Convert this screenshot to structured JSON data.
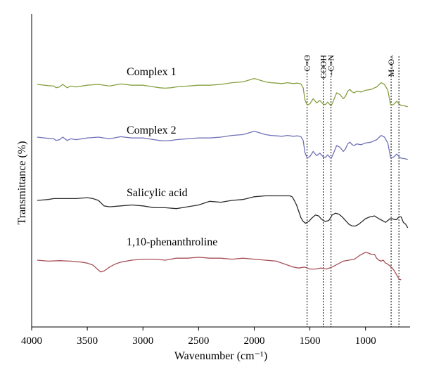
{
  "chart_data": {
    "type": "line",
    "xlabel": "Wavenumber (cm⁻¹)",
    "ylabel": "Transmittance (%)",
    "xlim": [
      4000,
      600
    ],
    "x_ticks": [
      "4000",
      "3500",
      "3000",
      "2500",
      "2000",
      "1500",
      "1000"
    ],
    "x_tick_values": [
      4000,
      3500,
      3000,
      2500,
      2000,
      1500,
      1000
    ],
    "y_axis_numeric": false,
    "grid": false,
    "legend": "none",
    "annotations": [
      {
        "label": "C=O",
        "x": 1525
      },
      {
        "label": "COOH",
        "x": 1380
      },
      {
        "label": "–C=N",
        "x": 1310
      },
      {
        "label": "M–O–",
        "x": 770
      },
      {
        "label": "",
        "x": 700
      }
    ],
    "series": [
      {
        "name": "Complex 1",
        "color": "#86a040",
        "x": [
          3950,
          3850,
          3800,
          3780,
          3750,
          3720,
          3680,
          3650,
          3600,
          3500,
          3400,
          3300,
          3200,
          3100,
          3000,
          2950,
          2900,
          2850,
          2800,
          2750,
          2700,
          2600,
          2500,
          2400,
          2300,
          2200,
          2100,
          2050,
          2000,
          1950,
          1900,
          1850,
          1800,
          1750,
          1700,
          1650,
          1610,
          1580,
          1560,
          1545,
          1525,
          1500,
          1470,
          1440,
          1410,
          1380,
          1360,
          1340,
          1310,
          1290,
          1260,
          1230,
          1200,
          1180,
          1160,
          1140,
          1120,
          1100,
          1080,
          1040,
          1000,
          950,
          900,
          860,
          830,
          800,
          775,
          760,
          740,
          720,
          700,
          680,
          650,
          620
        ],
        "y": [
          0.5,
          0.485,
          0.48,
          0.46,
          0.47,
          0.5,
          0.46,
          0.48,
          0.47,
          0.49,
          0.5,
          0.48,
          0.505,
          0.49,
          0.49,
          0.48,
          0.47,
          0.46,
          0.455,
          0.46,
          0.47,
          0.48,
          0.49,
          0.49,
          0.5,
          0.52,
          0.53,
          0.55,
          0.57,
          0.55,
          0.53,
          0.52,
          0.515,
          0.51,
          0.52,
          0.51,
          0.515,
          0.505,
          0.46,
          0.32,
          0.255,
          0.27,
          0.33,
          0.28,
          0.31,
          0.265,
          0.26,
          0.29,
          0.245,
          0.3,
          0.4,
          0.38,
          0.33,
          0.36,
          0.42,
          0.44,
          0.41,
          0.4,
          0.42,
          0.41,
          0.43,
          0.44,
          0.47,
          0.52,
          0.5,
          0.43,
          0.26,
          0.255,
          0.27,
          0.3,
          0.27,
          0.25,
          0.245,
          0.235
        ]
      },
      {
        "name": "Complex 2",
        "color": "#7072b8",
        "x": [
          3950,
          3850,
          3800,
          3780,
          3750,
          3720,
          3680,
          3650,
          3600,
          3500,
          3400,
          3300,
          3200,
          3100,
          3000,
          2950,
          2900,
          2850,
          2800,
          2750,
          2700,
          2600,
          2500,
          2400,
          2300,
          2200,
          2100,
          2050,
          2000,
          1950,
          1900,
          1850,
          1800,
          1750,
          1700,
          1650,
          1610,
          1580,
          1560,
          1545,
          1525,
          1500,
          1470,
          1440,
          1410,
          1380,
          1360,
          1340,
          1310,
          1290,
          1260,
          1230,
          1200,
          1180,
          1160,
          1140,
          1120,
          1100,
          1080,
          1040,
          1000,
          950,
          900,
          860,
          830,
          800,
          775,
          760,
          740,
          720,
          700,
          680,
          650,
          620
        ],
        "y": [
          0.5,
          0.485,
          0.48,
          0.46,
          0.47,
          0.5,
          0.46,
          0.48,
          0.47,
          0.49,
          0.5,
          0.48,
          0.505,
          0.49,
          0.49,
          0.48,
          0.47,
          0.46,
          0.455,
          0.46,
          0.47,
          0.48,
          0.49,
          0.49,
          0.5,
          0.52,
          0.53,
          0.55,
          0.57,
          0.55,
          0.53,
          0.52,
          0.515,
          0.51,
          0.52,
          0.51,
          0.515,
          0.505,
          0.46,
          0.32,
          0.255,
          0.27,
          0.33,
          0.28,
          0.31,
          0.265,
          0.26,
          0.29,
          0.245,
          0.3,
          0.4,
          0.38,
          0.33,
          0.36,
          0.42,
          0.44,
          0.41,
          0.4,
          0.42,
          0.41,
          0.43,
          0.44,
          0.47,
          0.52,
          0.5,
          0.43,
          0.26,
          0.255,
          0.27,
          0.3,
          0.27,
          0.25,
          0.245,
          0.235
        ]
      },
      {
        "name": "Salicylic acid",
        "color": "#2b2b2b",
        "x": [
          3950,
          3900,
          3850,
          3800,
          3700,
          3600,
          3500,
          3450,
          3400,
          3350,
          3300,
          3200,
          3100,
          3000,
          2900,
          2800,
          2700,
          2600,
          2500,
          2400,
          2300,
          2200,
          2100,
          2000,
          1900,
          1800,
          1750,
          1700,
          1680,
          1660,
          1640,
          1620,
          1600,
          1580,
          1560,
          1540,
          1510,
          1480,
          1450,
          1420,
          1400,
          1380,
          1360,
          1330,
          1300,
          1270,
          1240,
          1210,
          1180,
          1150,
          1120,
          1090,
          1060,
          1030,
          1000,
          960,
          920,
          880,
          850,
          820,
          800,
          780,
          760,
          740,
          720,
          700,
          680,
          660,
          640,
          620
        ],
        "y": [
          0.5,
          0.505,
          0.51,
          0.52,
          0.52,
          0.52,
          0.53,
          0.52,
          0.5,
          0.44,
          0.43,
          0.44,
          0.45,
          0.44,
          0.42,
          0.42,
          0.41,
          0.43,
          0.45,
          0.49,
          0.48,
          0.5,
          0.51,
          0.54,
          0.55,
          0.55,
          0.55,
          0.55,
          0.55,
          0.54,
          0.5,
          0.45,
          0.38,
          0.31,
          0.27,
          0.25,
          0.27,
          0.31,
          0.34,
          0.33,
          0.3,
          0.28,
          0.27,
          0.28,
          0.34,
          0.36,
          0.35,
          0.32,
          0.28,
          0.24,
          0.22,
          0.22,
          0.24,
          0.27,
          0.3,
          0.32,
          0.33,
          0.3,
          0.28,
          0.26,
          0.28,
          0.3,
          0.3,
          0.29,
          0.29,
          0.32,
          0.32,
          0.26,
          0.24,
          0.2
        ]
      },
      {
        "name": "1,10-phenanthroline",
        "color": "#a85058",
        "x": [
          3950,
          3850,
          3750,
          3650,
          3550,
          3500,
          3450,
          3400,
          3380,
          3350,
          3300,
          3250,
          3200,
          3100,
          3000,
          2900,
          2800,
          2700,
          2600,
          2500,
          2400,
          2300,
          2200,
          2100,
          2000,
          1900,
          1800,
          1750,
          1700,
          1650,
          1600,
          1550,
          1500,
          1450,
          1400,
          1350,
          1300,
          1250,
          1200,
          1150,
          1100,
          1050,
          1000,
          970,
          950,
          920,
          900,
          880,
          860,
          840,
          820,
          800,
          780,
          760,
          740,
          720,
          700,
          680
        ],
        "y": [
          0.5,
          0.49,
          0.495,
          0.49,
          0.48,
          0.47,
          0.45,
          0.4,
          0.38,
          0.39,
          0.43,
          0.46,
          0.48,
          0.5,
          0.51,
          0.51,
          0.5,
          0.52,
          0.52,
          0.53,
          0.52,
          0.52,
          0.51,
          0.52,
          0.51,
          0.5,
          0.49,
          0.47,
          0.45,
          0.43,
          0.42,
          0.43,
          0.41,
          0.41,
          0.42,
          0.41,
          0.43,
          0.46,
          0.49,
          0.5,
          0.51,
          0.55,
          0.58,
          0.57,
          0.56,
          0.56,
          0.52,
          0.5,
          0.49,
          0.5,
          0.47,
          0.46,
          0.44,
          0.42,
          0.39,
          0.35,
          0.31,
          0.3
        ]
      }
    ]
  }
}
